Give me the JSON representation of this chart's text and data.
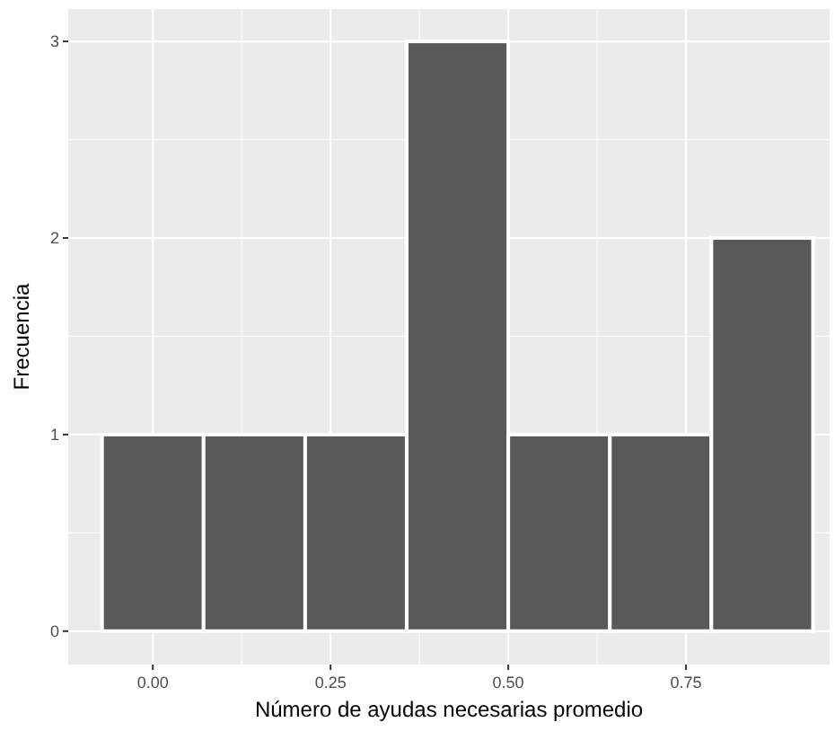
{
  "chart_data": {
    "type": "histogram",
    "xlabel": "Número de ayudas necesarias promedio",
    "ylabel": "Frecuencia",
    "bins": [
      -0.0714,
      0.0714,
      0.2143,
      0.3571,
      0.5,
      0.6429,
      0.7857,
      0.9286
    ],
    "values": [
      1,
      1,
      1,
      3,
      1,
      1,
      2
    ],
    "color": "#595959",
    "xlim": [
      -0.119,
      0.952
    ],
    "ylim": [
      -0.17,
      3.165
    ],
    "xticks": [
      {
        "value": 0,
        "label": "0.00"
      },
      {
        "value": 0.25,
        "label": "0.25"
      },
      {
        "value": 0.5,
        "label": "0.50"
      },
      {
        "value": 0.75,
        "label": "0.75"
      }
    ],
    "yticks": [
      0,
      1,
      2,
      3
    ],
    "grid": true
  }
}
